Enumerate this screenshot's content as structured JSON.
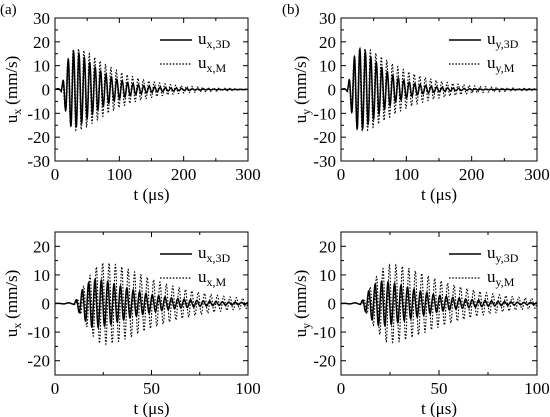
{
  "figure": {
    "panel_tags": [
      "(a)",
      "(b)"
    ]
  },
  "chart_data": [
    {
      "type": "line",
      "xlabel": "t (μs)",
      "ylabel_main": "u",
      "ylabel_sub": "x",
      "ylabel_unit": "(mm/s)",
      "xlim": [
        0,
        300
      ],
      "ylim": [
        -30,
        30
      ],
      "xticks": [
        0,
        100,
        200,
        300
      ],
      "yticks": [
        -30,
        -20,
        -10,
        0,
        10,
        20,
        30
      ],
      "legend_position": "top-right",
      "series": [
        {
          "name_main": "u",
          "name_sub": "x,3D",
          "style": "solid",
          "wave": {
            "onset": 10,
            "amp": 24,
            "rise": 14,
            "decay": 42,
            "period": 8.4,
            "phase": 0.0,
            "pre_amp": 0.8
          }
        },
        {
          "name_main": "u",
          "name_sub": "x,M",
          "style": "dotted",
          "wave": {
            "onset": 10,
            "amp": 25,
            "rise": 16,
            "decay": 62,
            "period": 8.4,
            "phase": 0.55,
            "pre_amp": 1.0
          }
        }
      ]
    },
    {
      "type": "line",
      "xlabel": "t (μs)",
      "ylabel_main": "u",
      "ylabel_sub": "y",
      "ylabel_unit": "(mm/s)",
      "xlim": [
        0,
        300
      ],
      "ylim": [
        -30,
        30
      ],
      "xticks": [
        0,
        100,
        200,
        300
      ],
      "yticks": [
        -30,
        -20,
        -10,
        0,
        10,
        20,
        30
      ],
      "legend_position": "top-right",
      "series": [
        {
          "name_main": "u",
          "name_sub": "y,3D",
          "style": "solid",
          "wave": {
            "onset": 10,
            "amp": 26,
            "rise": 14,
            "decay": 38,
            "period": 8.4,
            "phase": 0.0,
            "pre_amp": 0.8
          }
        },
        {
          "name_main": "u",
          "name_sub": "y,M",
          "style": "dotted",
          "wave": {
            "onset": 10,
            "amp": 25,
            "rise": 16,
            "decay": 64,
            "period": 8.4,
            "phase": 0.55,
            "pre_amp": 1.0
          }
        }
      ]
    },
    {
      "type": "line",
      "xlabel": "t (μs)",
      "ylabel_main": "u",
      "ylabel_sub": "x",
      "ylabel_unit": "(mm/s)",
      "xlim": [
        0,
        100
      ],
      "ylim": [
        -25,
        25
      ],
      "xticks": [
        0,
        50,
        100
      ],
      "yticks": [
        -20,
        -10,
        0,
        10,
        20
      ],
      "legend_position": "top-right",
      "series": [
        {
          "name_main": "u",
          "name_sub": "x,3D",
          "style": "solid",
          "wave": {
            "onset": 10,
            "amp": 13,
            "rise": 9,
            "decay": 22,
            "period": 3.3,
            "phase": 0.0,
            "pre_amp": 0.3
          }
        },
        {
          "name_main": "u",
          "name_sub": "x,M",
          "style": "dotted",
          "wave": {
            "onset": 11,
            "amp": 22,
            "rise": 12,
            "decay": 30,
            "period": 3.3,
            "phase": 0.6,
            "pre_amp": 0.4
          }
        }
      ]
    },
    {
      "type": "line",
      "xlabel": "t (μs)",
      "ylabel_main": "u",
      "ylabel_sub": "y",
      "ylabel_unit": "(mm/s)",
      "xlim": [
        0,
        100
      ],
      "ylim": [
        -25,
        25
      ],
      "xticks": [
        0,
        50,
        100
      ],
      "yticks": [
        -20,
        -10,
        0,
        10,
        20
      ],
      "legend_position": "top-right",
      "series": [
        {
          "name_main": "u",
          "name_sub": "y,3D",
          "style": "solid",
          "wave": {
            "onset": 10,
            "amp": 12,
            "rise": 9,
            "decay": 22,
            "period": 3.3,
            "phase": 0.0,
            "pre_amp": 0.3
          }
        },
        {
          "name_main": "u",
          "name_sub": "y,M",
          "style": "dotted",
          "wave": {
            "onset": 11,
            "amp": 21,
            "rise": 12,
            "decay": 30,
            "period": 3.3,
            "phase": 0.6,
            "pre_amp": 0.4
          }
        }
      ]
    }
  ]
}
